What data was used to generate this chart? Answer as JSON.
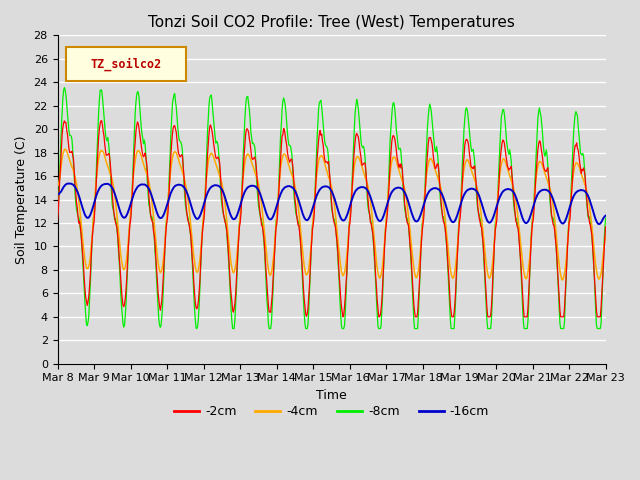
{
  "title": "Tonzi Soil CO2 Profile: Tree (West) Temperatures",
  "xlabel": "Time",
  "ylabel": "Soil Temperature (C)",
  "ylim": [
    0,
    28
  ],
  "xlim": [
    0,
    15
  ],
  "bg_color": "#dcdcdc",
  "legend_label": "TZ_soilco2",
  "series_labels": [
    "-2cm",
    "-4cm",
    "-8cm",
    "-16cm"
  ],
  "series_colors": [
    "#ff0000",
    "#ffaa00",
    "#00ee00",
    "#0000cc"
  ],
  "xtick_labels": [
    "Mar 8",
    "Mar 9",
    "Mar 10",
    "Mar 11",
    "Mar 12",
    "Mar 13",
    "Mar 14",
    "Mar 15",
    "Mar 16",
    "Mar 17",
    "Mar 18",
    "Mar 19",
    "Mar 20",
    "Mar 21",
    "Mar 22",
    "Mar 23"
  ],
  "title_fontsize": 11,
  "axis_label_fontsize": 9,
  "tick_fontsize": 8
}
